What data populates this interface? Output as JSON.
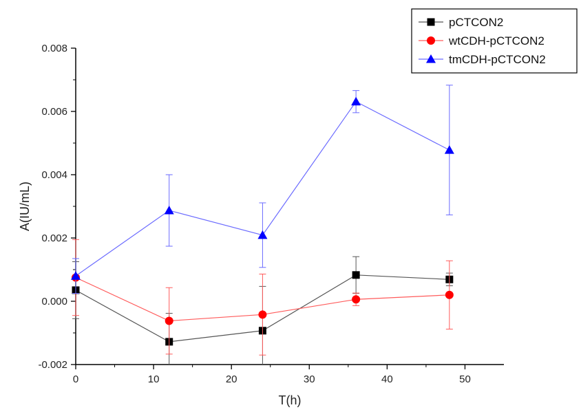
{
  "chart_data": {
    "type": "line",
    "title": "",
    "xlabel": "T(h)",
    "ylabel": "A(IU/mL)",
    "xlim": [
      0,
      55
    ],
    "ylim": [
      -0.002,
      0.008
    ],
    "xticks": [
      0,
      10,
      20,
      30,
      40,
      50
    ],
    "xtick_labels": [
      "0",
      "10",
      "20",
      "30",
      "40",
      "50"
    ],
    "yticks": [
      -0.002,
      0.0,
      0.002,
      0.004,
      0.006,
      0.008
    ],
    "ytick_labels": [
      "-0.002",
      "0.000",
      "0.002",
      "0.004",
      "0.006",
      "0.008"
    ],
    "grid": false,
    "legend_position": "top-right",
    "series": [
      {
        "name": "pCTCON2",
        "color": "#000000",
        "line_color": "#555555",
        "marker": "square",
        "x": [
          0,
          12,
          24,
          36,
          48
        ],
        "y": [
          0.00035,
          -0.00128,
          -0.00093,
          0.00083,
          0.00069
        ],
        "err": [
          0.0009,
          0.0009,
          0.0014,
          0.00058,
          0.0002
        ]
      },
      {
        "name": "wtCDH-pCTCON2",
        "color": "#ff0000",
        "line_color": "#ff5a5a",
        "marker": "circle",
        "x": [
          0,
          12,
          24,
          36,
          48
        ],
        "y": [
          0.00075,
          -0.00062,
          -0.00042,
          6e-05,
          0.0002
        ],
        "err": [
          0.0012,
          0.00105,
          0.00128,
          0.0002,
          0.00108
        ]
      },
      {
        "name": "tmCDH-pCTCON2",
        "color": "#0000ff",
        "line_color": "#6a6aff",
        "marker": "triangle",
        "x": [
          0,
          12,
          24,
          36,
          48
        ],
        "y": [
          0.0008,
          0.00287,
          0.00209,
          0.00631,
          0.00478
        ],
        "err": [
          0.00055,
          0.00113,
          0.00102,
          0.00035,
          0.00205
        ]
      }
    ]
  }
}
